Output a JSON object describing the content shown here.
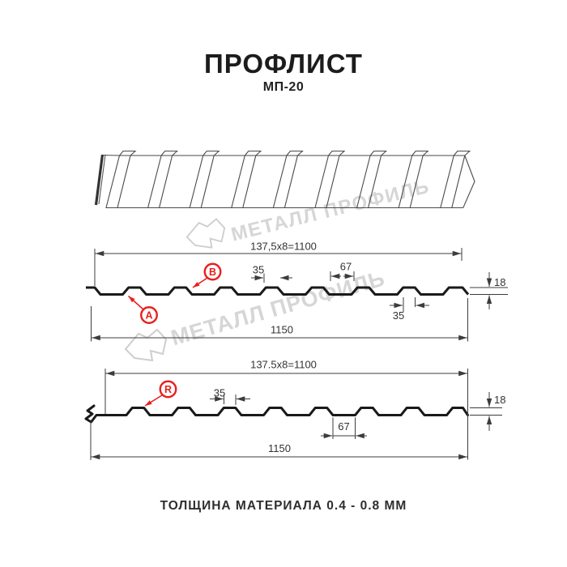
{
  "header": {
    "title": "ПРОФЛИСТ",
    "subtitle": "МП-20"
  },
  "footer": {
    "text": "ТОЛЩИНА МАТЕРИАЛА 0.4 - 0.8 ММ"
  },
  "watermark": {
    "text": "МЕТАЛЛ ПРОФИЛЬ",
    "color": "#d6d6d6"
  },
  "colors": {
    "accent_red": "#e8201e",
    "dimension_line": "#3c3c3c",
    "profile_line": "#1a1a1a"
  },
  "diagram_top": {
    "pitch_dim": "137,5x8=1100",
    "crest_width_dim": "35",
    "valley_dim": "67",
    "height_dim": "18",
    "rib_bottom_dim": "35",
    "width_dim": "1150",
    "label_a": "A",
    "label_b": "B"
  },
  "diagram_bottom": {
    "pitch_dim": "137.5x8=1100",
    "crest_width_dim": "35",
    "valley_dim": "67",
    "height_dim": "18",
    "width_dim": "1150",
    "label_r": "R"
  }
}
